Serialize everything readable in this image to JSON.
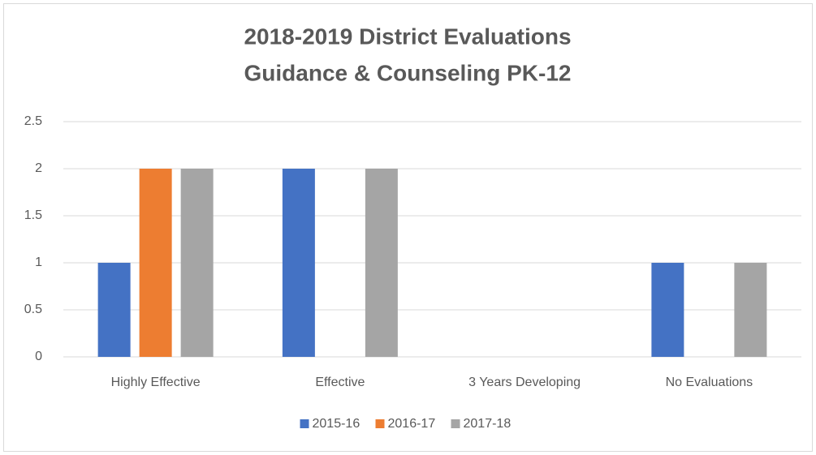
{
  "chart_data": {
    "type": "bar",
    "title": [
      "2018-2019 District Evaluations",
      "Guidance & Counseling PK-12"
    ],
    "categories": [
      "Highly Effective",
      "Effective",
      "3 Years Developing",
      "No Evaluations"
    ],
    "series": [
      {
        "name": "2015-16",
        "color": "#4472c4",
        "values": [
          1,
          2,
          0,
          1
        ]
      },
      {
        "name": "2016-17",
        "color": "#ed7d31",
        "values": [
          2,
          0,
          0,
          0
        ]
      },
      {
        "name": "2017-18",
        "color": "#a5a5a5",
        "values": [
          2,
          2,
          0,
          1
        ]
      }
    ],
    "ylim": [
      0,
      2.5
    ],
    "yticks": [
      0,
      0.5,
      1,
      1.5,
      2,
      2.5
    ],
    "grid": true,
    "legend": "bottom"
  }
}
